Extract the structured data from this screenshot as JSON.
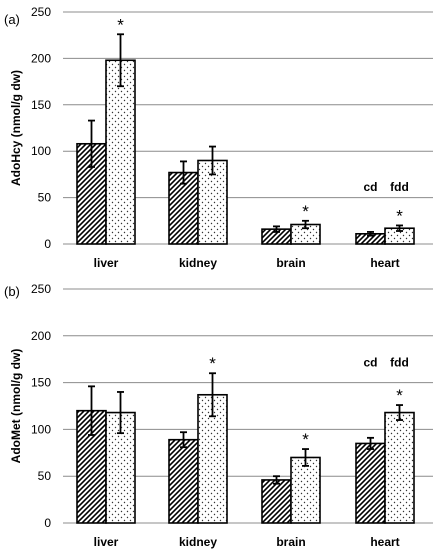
{
  "chart_data": [
    {
      "type": "bar",
      "panel_label": "(a)",
      "ylabel": "AdoHcy (nmol/g dw)",
      "ylim": [
        0,
        250
      ],
      "yticks": [
        0,
        50,
        100,
        150,
        200,
        250
      ],
      "grid": true,
      "categories": [
        "liver",
        "kidney",
        "brain",
        "heart"
      ],
      "series": [
        {
          "pattern": "diagonal-hatch",
          "values": [
            108,
            77,
            16,
            11
          ],
          "errors": [
            25,
            12,
            3,
            2
          ]
        },
        {
          "pattern": "dots",
          "values": [
            198,
            90,
            21,
            17
          ],
          "errors": [
            28,
            15,
            4,
            3
          ]
        }
      ],
      "annotations": [
        {
          "category": "liver",
          "series": 1,
          "text": "*"
        },
        {
          "category": "brain",
          "series": 1,
          "text": "*"
        },
        {
          "category": "heart",
          "series": 1,
          "text": "*"
        },
        {
          "category": "heart",
          "series": 0,
          "text": "cd",
          "value": 57
        },
        {
          "category": "heart",
          "series": 1,
          "text": "fdd",
          "value": 57
        }
      ]
    },
    {
      "type": "bar",
      "panel_label": "(b)",
      "ylabel": "AdoMet (nmol/g dw)",
      "ylim": [
        0,
        250
      ],
      "yticks": [
        0,
        50,
        100,
        150,
        200,
        250
      ],
      "grid": true,
      "categories": [
        "liver",
        "kidney",
        "brain",
        "heart"
      ],
      "series": [
        {
          "pattern": "diagonal-hatch",
          "values": [
            120,
            89,
            46,
            85
          ],
          "errors": [
            26,
            8,
            4,
            6
          ]
        },
        {
          "pattern": "dots",
          "values": [
            118,
            137,
            70,
            118
          ],
          "errors": [
            22,
            23,
            9,
            8
          ]
        }
      ],
      "annotations": [
        {
          "category": "kidney",
          "series": 1,
          "text": "*"
        },
        {
          "category": "brain",
          "series": 1,
          "text": "*"
        },
        {
          "category": "heart",
          "series": 1,
          "text": "*"
        },
        {
          "category": "heart",
          "series": 0,
          "text": "cd",
          "value": 167
        },
        {
          "category": "heart",
          "series": 1,
          "text": "fdd",
          "value": 167
        }
      ]
    }
  ]
}
